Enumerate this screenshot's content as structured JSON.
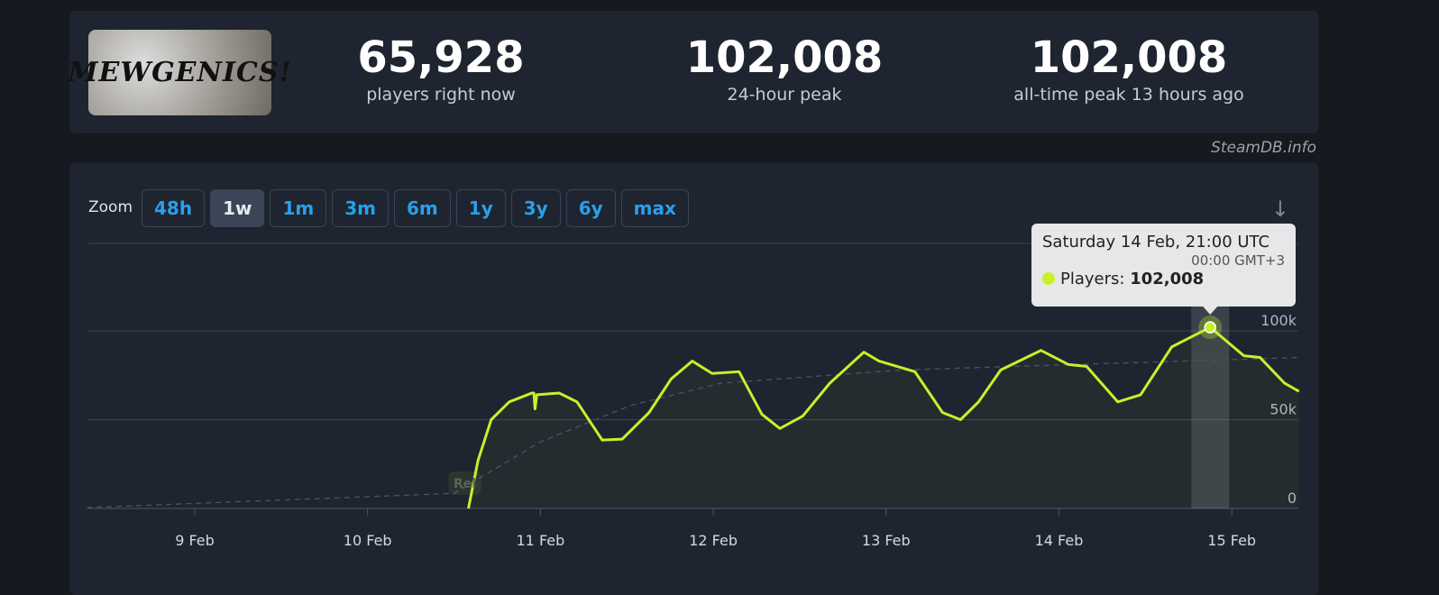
{
  "game": {
    "logo_text": "MEWGENICS!"
  },
  "stats": [
    {
      "value": "65,928",
      "label": "players right now"
    },
    {
      "value": "102,008",
      "label": "24-hour peak"
    },
    {
      "value": "102,008",
      "label": "all-time peak 13 hours ago"
    }
  ],
  "credit": "SteamDB.info",
  "zoom": {
    "label": "Zoom",
    "options": [
      "48h",
      "1w",
      "1m",
      "3m",
      "6m",
      "1y",
      "3y",
      "6y",
      "max"
    ],
    "active": "1w"
  },
  "icons": {
    "download": "download-arrow-icon"
  },
  "tooltip": {
    "date": "Saturday 14 Feb, 21:00 UTC",
    "local": "00:00 GMT+3",
    "series": "Players:",
    "value": "102,008"
  },
  "colors": {
    "line": "#c8f02b",
    "bg": "#1e2530",
    "grid": "#3a4452"
  },
  "chart_data": {
    "type": "line",
    "x_ticks": [
      "9 Feb",
      "10 Feb",
      "11 Feb",
      "12 Feb",
      "13 Feb",
      "14 Feb",
      "15 Feb"
    ],
    "y_ticks": [
      "0",
      "50k",
      "100k"
    ],
    "ylim": [
      0,
      100000
    ],
    "xlim": [
      "8 Feb 09:00",
      "15 Feb 09:20"
    ],
    "grid": true,
    "annotation": {
      "label": "Rel",
      "x": "10 Feb 13:30"
    },
    "series": [
      {
        "style": "solid",
        "points": [
          [
            "10 Feb 14:00",
            0
          ],
          [
            "10 Feb 15:20",
            27000
          ],
          [
            "10 Feb 17:10",
            50000
          ],
          [
            "10 Feb 19:40",
            60000
          ],
          [
            "10 Feb 22:50",
            65000
          ],
          [
            "10 Feb 23:05",
            65000
          ],
          [
            "10 Feb 23:15",
            56000
          ],
          [
            "10 Feb 23:30",
            64000
          ],
          [
            "11 Feb 02:35",
            65000
          ],
          [
            "11 Feb 05:05",
            60000
          ],
          [
            "11 Feb 08:35",
            38500
          ],
          [
            "11 Feb 11:20",
            39000
          ],
          [
            "11 Feb 15:05",
            54000
          ],
          [
            "11 Feb 18:10",
            73000
          ],
          [
            "11 Feb 21:05",
            83000
          ],
          [
            "11 Feb 23:50",
            76000
          ],
          [
            "12 Feb 03:35",
            77000
          ],
          [
            "12 Feb 06:45",
            53000
          ],
          [
            "12 Feb 09:15",
            45000
          ],
          [
            "12 Feb 12:25",
            52000
          ],
          [
            "12 Feb 16:10",
            70500
          ],
          [
            "12 Feb 20:55",
            88000
          ],
          [
            "12 Feb 23:00",
            83000
          ],
          [
            "13 Feb 04:00",
            77000
          ],
          [
            "13 Feb 07:50",
            54000
          ],
          [
            "13 Feb 10:20",
            50000
          ],
          [
            "13 Feb 12:50",
            60000
          ],
          [
            "13 Feb 15:55",
            78000
          ],
          [
            "13 Feb 21:30",
            89000
          ],
          [
            "14 Feb 01:20",
            81000
          ],
          [
            "14 Feb 03:50",
            80000
          ],
          [
            "14 Feb 08:10",
            60000
          ],
          [
            "14 Feb 11:20",
            64000
          ],
          [
            "14 Feb 15:40",
            91000
          ],
          [
            "14 Feb 21:00",
            102008
          ],
          [
            "15 Feb 01:40",
            86000
          ],
          [
            "15 Feb 03:55",
            85000
          ],
          [
            "15 Feb 07:20",
            70500
          ],
          [
            "15 Feb 09:20",
            65928
          ]
        ]
      },
      {
        "style": "dashed",
        "points": [
          [
            "8 Feb 09:00",
            500
          ],
          [
            "10 Feb 12:00",
            8500
          ],
          [
            "11 Feb 00:00",
            37500
          ],
          [
            "11 Feb 12:30",
            58000
          ],
          [
            "12 Feb 01:00",
            70500
          ],
          [
            "13 Feb 02:15",
            78000
          ],
          [
            "15 Feb 09:20",
            85000
          ]
        ]
      }
    ],
    "highlight": {
      "x": "14 Feb 21:00",
      "y": 102008
    }
  }
}
